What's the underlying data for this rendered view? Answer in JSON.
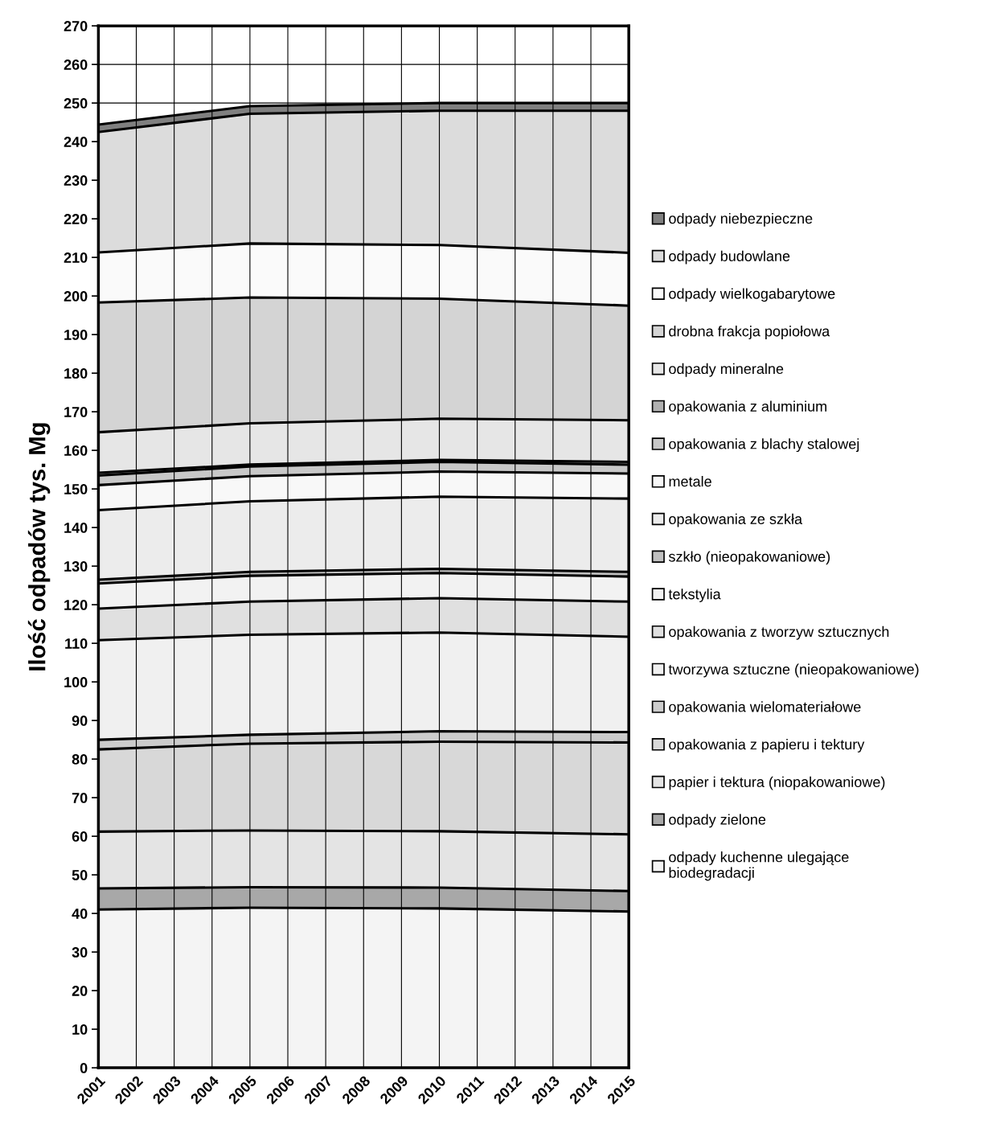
{
  "chart_data": {
    "type": "area",
    "stacked": true,
    "ylabel": "Ilość odpadów tys. Mg",
    "x": [
      2001,
      2005,
      2010,
      2015
    ],
    "xlim": [
      2001,
      2015
    ],
    "xticks": [
      2001,
      2002,
      2003,
      2004,
      2005,
      2006,
      2007,
      2008,
      2009,
      2010,
      2011,
      2012,
      2013,
      2014,
      2015
    ],
    "ylim": [
      0,
      270
    ],
    "yticks": [
      0,
      10,
      20,
      30,
      40,
      50,
      60,
      70,
      80,
      90,
      100,
      110,
      120,
      130,
      140,
      150,
      160,
      170,
      180,
      190,
      200,
      210,
      220,
      230,
      240,
      250,
      260,
      270
    ],
    "grid": true,
    "legend": "right",
    "series": [
      {
        "name": "odpady kuchenne ulegające\nbiodegradacji",
        "color": "#f4f4f4",
        "values": [
          41,
          41.5,
          41.3,
          40.5
        ]
      },
      {
        "name": "odpady zielone",
        "color": "#a8a8a8",
        "values": [
          5.5,
          5.3,
          5.4,
          5.3
        ]
      },
      {
        "name": "papier i tektura (niopakowaniowe)",
        "color": "#e4e4e4",
        "values": [
          14.7,
          14.7,
          14.6,
          14.7
        ]
      },
      {
        "name": "opakowania z papieru i tektury",
        "color": "#d8d8d8",
        "values": [
          21.3,
          22.5,
          23.2,
          23.8
        ]
      },
      {
        "name": "opakowania wielomateriałowe",
        "color": "#cccccc",
        "values": [
          2.5,
          2.3,
          2.7,
          2.7
        ]
      },
      {
        "name": "tworzywa sztuczne (nieopakowaniowe)",
        "color": "#f0f0f0",
        "values": [
          25.8,
          25.9,
          25.6,
          24.7
        ]
      },
      {
        "name": "opakowania z tworzyw sztucznych",
        "color": "#e0e0e0",
        "values": [
          8.2,
          8.6,
          8.9,
          9.1
        ]
      },
      {
        "name": "tekstylia",
        "color": "#f2f2f2",
        "values": [
          6.5,
          6.7,
          6.5,
          6.5
        ]
      },
      {
        "name": "szkło (nieopakowaniowe)",
        "color": "#c0c0c0",
        "values": [
          1.0,
          1.0,
          1.1,
          1.2
        ]
      },
      {
        "name": "opakowania ze szkła",
        "color": "#ececec",
        "values": [
          18,
          18.3,
          18.7,
          19
        ]
      },
      {
        "name": "metale",
        "color": "#f8f8f8",
        "values": [
          6.5,
          6.5,
          6.5,
          6.5
        ]
      },
      {
        "name": "opakowania z blachy stalowej",
        "color": "#c8c8c8",
        "values": [
          2.5,
          2.5,
          2.5,
          2.3
        ]
      },
      {
        "name": "opakowania z aluminium",
        "color": "#b0b0b0",
        "values": [
          0.7,
          0.5,
          0.5,
          0.7
        ]
      },
      {
        "name": "odpady mineralne",
        "color": "#e6e6e6",
        "values": [
          10.5,
          10.7,
          10.7,
          10.8
        ]
      },
      {
        "name": "drobna frakcja popiołowa",
        "color": "#d4d4d4",
        "values": [
          33.6,
          32.6,
          31.1,
          29.7
        ]
      },
      {
        "name": "odpady wielkogabarytowe",
        "color": "#fafafa",
        "values": [
          13,
          14,
          13.9,
          13.7
        ]
      },
      {
        "name": "odpady budowlane",
        "color": "#dcdcdc",
        "values": [
          31.2,
          33.6,
          34.8,
          36.8
        ]
      },
      {
        "name": "odpady niebezpieczne",
        "color": "#808080",
        "values": [
          1.9,
          2.0,
          2.0,
          2.0
        ]
      }
    ]
  }
}
